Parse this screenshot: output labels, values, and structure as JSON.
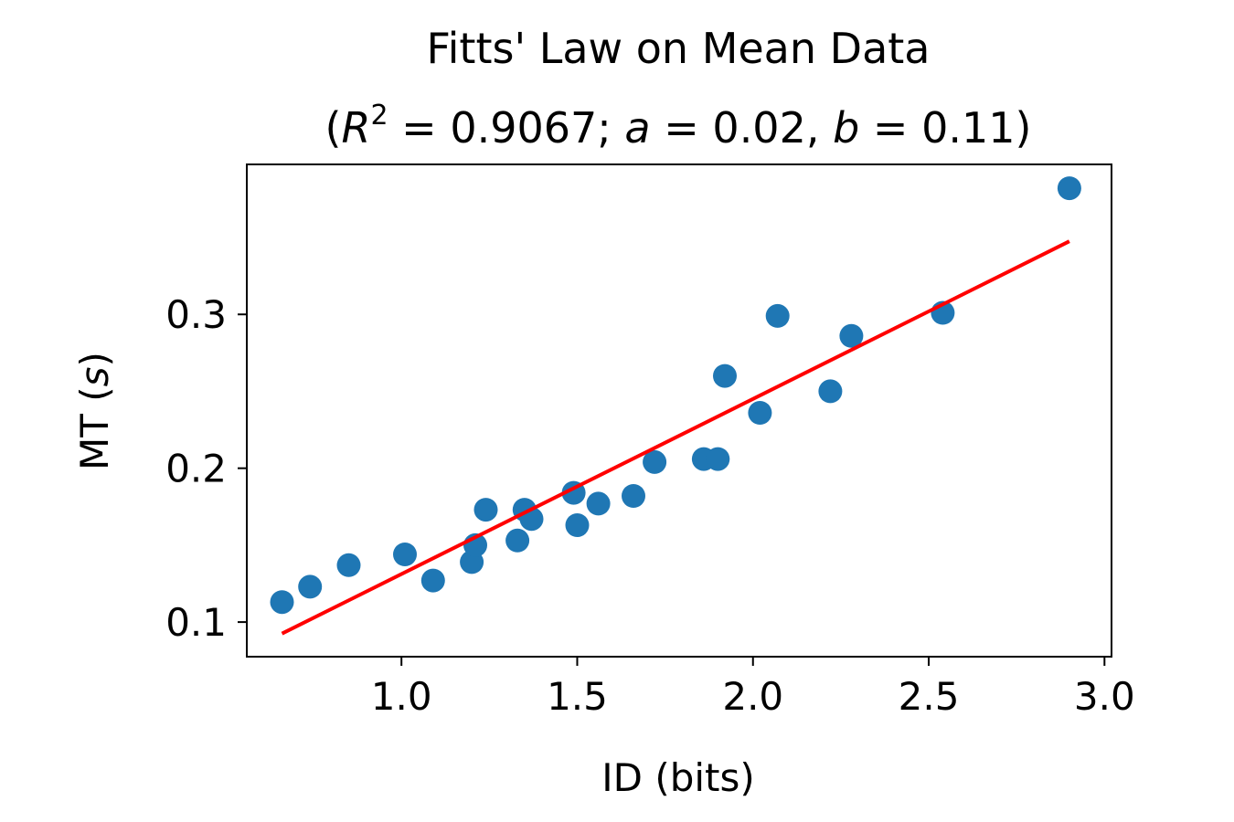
{
  "chart_data": {
    "type": "scatter",
    "title": "Fitts' Law on Mean Data",
    "subtitle": {
      "open": "(",
      "r_symbol": "R",
      "r_exponent": "2",
      "equals": " = ",
      "r2_value": "0.9067",
      "sep1": "; ",
      "a_symbol": "a",
      "a_value": "0.02",
      "sep2": ", ",
      "b_symbol": "b",
      "b_value": "0.11",
      "close": ")"
    },
    "xlabel": "ID (bits)",
    "ylabel": {
      "prefix": "MT (",
      "unit": "s",
      "suffix": ")"
    },
    "xlim": [
      0.56,
      3.02
    ],
    "ylim": [
      0.0775,
      0.3975
    ],
    "x_ticks": [
      {
        "value": 1.0,
        "label": "1.0"
      },
      {
        "value": 1.5,
        "label": "1.5"
      },
      {
        "value": 2.0,
        "label": "2.0"
      },
      {
        "value": 2.5,
        "label": "2.5"
      },
      {
        "value": 3.0,
        "label": "3.0"
      }
    ],
    "y_ticks": [
      {
        "value": 0.1,
        "label": "0.1"
      },
      {
        "value": 0.2,
        "label": "0.2"
      },
      {
        "value": 0.3,
        "label": "0.3"
      }
    ],
    "grid": false,
    "series": [
      {
        "kind": "points",
        "color": "#1f77b4",
        "points": [
          [
            0.66,
            0.113
          ],
          [
            0.74,
            0.123
          ],
          [
            0.85,
            0.137
          ],
          [
            1.01,
            0.144
          ],
          [
            1.09,
            0.127
          ],
          [
            1.2,
            0.139
          ],
          [
            1.21,
            0.15
          ],
          [
            1.24,
            0.173
          ],
          [
            1.33,
            0.153
          ],
          [
            1.35,
            0.173
          ],
          [
            1.37,
            0.167
          ],
          [
            1.49,
            0.184
          ],
          [
            1.5,
            0.163
          ],
          [
            1.56,
            0.177
          ],
          [
            1.66,
            0.182
          ],
          [
            1.72,
            0.204
          ],
          [
            1.86,
            0.206
          ],
          [
            1.9,
            0.206
          ],
          [
            1.92,
            0.26
          ],
          [
            2.02,
            0.236
          ],
          [
            2.07,
            0.299
          ],
          [
            2.22,
            0.25
          ],
          [
            2.28,
            0.286
          ],
          [
            2.54,
            0.301
          ],
          [
            2.9,
            0.382
          ]
        ]
      },
      {
        "kind": "fit-line",
        "color": "#ff0000",
        "points": [
          [
            0.66,
            0.0925
          ],
          [
            2.9,
            0.3475
          ]
        ]
      }
    ]
  }
}
